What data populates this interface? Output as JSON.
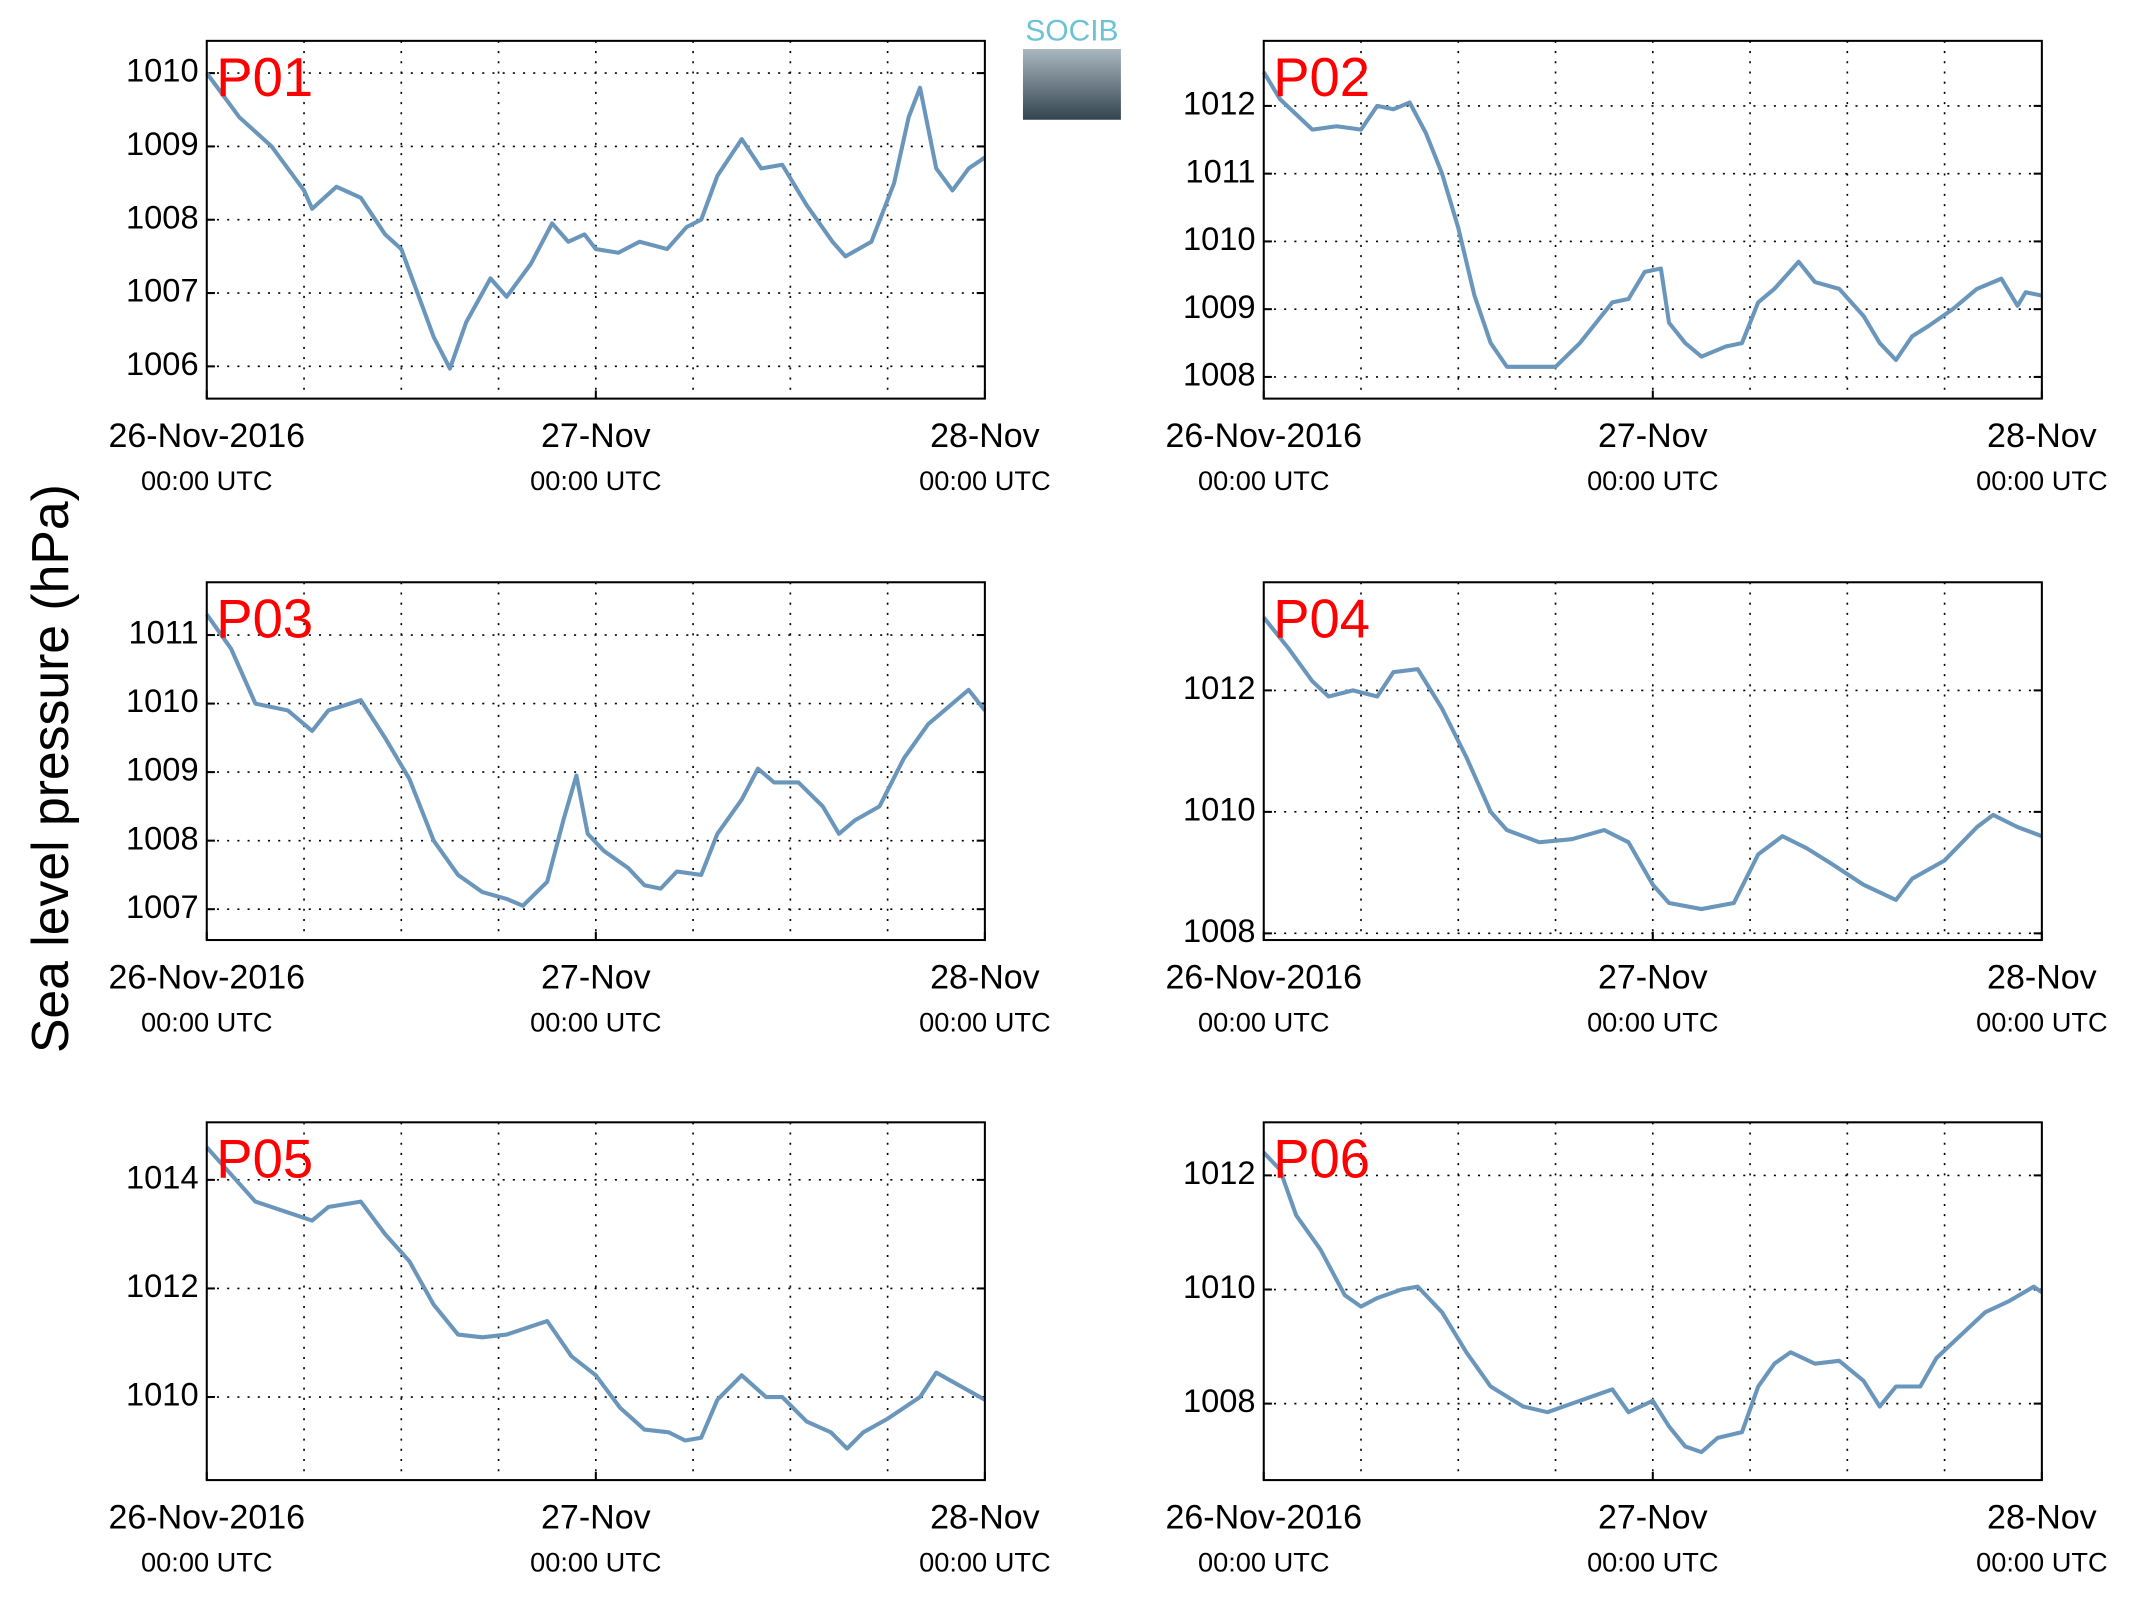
{
  "ylabel": "Sea level pressure (hPa)",
  "logo": "SOCIB",
  "chart_data": [
    {
      "type": "line",
      "title": "P01",
      "x": [
        0,
        2,
        4,
        6,
        6.5,
        8,
        9.5,
        11,
        12,
        13,
        14,
        15,
        16,
        17.5,
        18.5,
        20,
        21.3,
        22.3,
        23.3,
        24,
        25.4,
        26.7,
        28.4,
        29.6,
        30.5,
        31.5,
        33,
        34.2,
        35.5,
        37,
        38.6,
        39.4,
        41,
        42.4,
        43.3,
        44,
        45,
        46,
        47,
        48
      ],
      "series": [
        {
          "color": "#6a96bb",
          "values": [
            1010.0,
            1009.4,
            1009.0,
            1008.4,
            1008.15,
            1008.45,
            1008.3,
            1007.8,
            1007.6,
            1007.0,
            1006.4,
            1005.97,
            1006.6,
            1007.2,
            1006.95,
            1007.4,
            1007.95,
            1007.7,
            1007.8,
            1007.6,
            1007.55,
            1007.7,
            1007.6,
            1007.9,
            1008.0,
            1008.6,
            1009.1,
            1008.7,
            1008.75,
            1008.2,
            1007.7,
            1007.5,
            1007.7,
            1008.5,
            1009.4,
            1009.8,
            1008.7,
            1008.4,
            1008.7,
            1008.85
          ]
        }
      ],
      "xlim": [
        0,
        48
      ],
      "xticks": [
        {
          "value": 0,
          "label": "26-Nov-2016",
          "sublabel": "00:00 UTC"
        },
        {
          "value": 24,
          "label": "27-Nov",
          "sublabel": "00:00 UTC"
        },
        {
          "value": 48,
          "label": "28-Nov",
          "sublabel": "00:00 UTC"
        }
      ],
      "xgrid": [
        6,
        12,
        18,
        24,
        30,
        36,
        42
      ],
      "ylim": [
        1005.56,
        1010.44
      ],
      "yticks": [
        1006,
        1007,
        1008,
        1009,
        1010
      ],
      "grid": true
    },
    {
      "type": "line",
      "title": "P02",
      "x": [
        0,
        1,
        3,
        4.5,
        6,
        7,
        8,
        9,
        10,
        11,
        12,
        13,
        14,
        15,
        16.5,
        18,
        19.5,
        20.5,
        21.5,
        22.5,
        23.5,
        24.5,
        25,
        26,
        27,
        28.5,
        29.5,
        30.5,
        31.5,
        33,
        34,
        35.5,
        37,
        38,
        39,
        40,
        41,
        42.5,
        44,
        45.5,
        46.5,
        47,
        48
      ],
      "series": [
        {
          "color": "#6a96bb",
          "values": [
            1012.5,
            1012.1,
            1011.65,
            1011.7,
            1011.65,
            1012.0,
            1011.95,
            1012.05,
            1011.6,
            1011.0,
            1010.2,
            1009.2,
            1008.5,
            1008.15,
            1008.15,
            1008.15,
            1008.5,
            1008.8,
            1009.1,
            1009.15,
            1009.55,
            1009.6,
            1008.8,
            1008.5,
            1008.3,
            1008.45,
            1008.5,
            1009.1,
            1009.3,
            1009.7,
            1009.4,
            1009.3,
            1008.9,
            1008.5,
            1008.25,
            1008.6,
            1008.75,
            1009.0,
            1009.3,
            1009.45,
            1009.05,
            1009.25,
            1009.2
          ]
        }
      ],
      "xlim": [
        0,
        48
      ],
      "xticks": [
        {
          "value": 0,
          "label": "26-Nov-2016",
          "sublabel": "00:00 UTC"
        },
        {
          "value": 24,
          "label": "27-Nov",
          "sublabel": "00:00 UTC"
        },
        {
          "value": 48,
          "label": "28-Nov",
          "sublabel": "00:00 UTC"
        }
      ],
      "xgrid": [
        6,
        12,
        18,
        24,
        30,
        36,
        42
      ],
      "ylim": [
        1007.68,
        1012.96
      ],
      "yticks": [
        1008,
        1009,
        1010,
        1011,
        1012
      ],
      "grid": true
    },
    {
      "type": "line",
      "title": "P03",
      "x": [
        0,
        1.5,
        3,
        5,
        6.5,
        7.5,
        9.5,
        11,
        12.5,
        14,
        15.5,
        17,
        18.5,
        19.5,
        21,
        22,
        22.8,
        23.5,
        24.5,
        26,
        27,
        28,
        29,
        30.5,
        31.5,
        33,
        34,
        35,
        36.5,
        38,
        39,
        40,
        41.5,
        43,
        44.5,
        46,
        47,
        48
      ],
      "series": [
        {
          "color": "#6a96bb",
          "values": [
            1011.3,
            1010.8,
            1010.0,
            1009.9,
            1009.6,
            1009.9,
            1010.05,
            1009.5,
            1008.9,
            1008.0,
            1007.5,
            1007.25,
            1007.15,
            1007.05,
            1007.4,
            1008.3,
            1008.95,
            1008.1,
            1007.85,
            1007.6,
            1007.35,
            1007.3,
            1007.55,
            1007.5,
            1008.1,
            1008.6,
            1009.05,
            1008.85,
            1008.85,
            1008.5,
            1008.1,
            1008.3,
            1008.5,
            1009.2,
            1009.7,
            1010.0,
            1010.2,
            1009.9
          ]
        }
      ],
      "xlim": [
        0,
        48
      ],
      "xticks": [
        {
          "value": 0,
          "label": "26-Nov-2016",
          "sublabel": "00:00 UTC"
        },
        {
          "value": 24,
          "label": "27-Nov",
          "sublabel": "00:00 UTC"
        },
        {
          "value": 48,
          "label": "28-Nov",
          "sublabel": "00:00 UTC"
        }
      ],
      "xgrid": [
        6,
        12,
        18,
        24,
        30,
        36,
        42
      ],
      "ylim": [
        1006.55,
        1011.77
      ],
      "yticks": [
        1007,
        1008,
        1009,
        1010,
        1011
      ],
      "grid": true
    },
    {
      "type": "line",
      "title": "P04",
      "x": [
        0,
        1.5,
        3,
        4,
        5.5,
        7,
        8,
        9.5,
        11,
        12.5,
        14,
        15,
        17,
        19,
        21,
        22.5,
        24,
        25,
        27,
        29,
        30.5,
        32,
        33.5,
        35,
        37,
        39,
        40,
        42,
        44,
        45,
        46.5,
        48
      ],
      "series": [
        {
          "color": "#6a96bb",
          "values": [
            1013.2,
            1012.7,
            1012.15,
            1011.9,
            1012.0,
            1011.9,
            1012.3,
            1012.35,
            1011.7,
            1010.9,
            1010.0,
            1009.7,
            1009.5,
            1009.55,
            1009.7,
            1009.5,
            1008.8,
            1008.5,
            1008.4,
            1008.5,
            1009.3,
            1009.6,
            1009.4,
            1009.15,
            1008.8,
            1008.55,
            1008.9,
            1009.2,
            1009.75,
            1009.95,
            1009.75,
            1009.6
          ]
        }
      ],
      "xlim": [
        0,
        48
      ],
      "xticks": [
        {
          "value": 0,
          "label": "26-Nov-2016",
          "sublabel": "00:00 UTC"
        },
        {
          "value": 24,
          "label": "27-Nov",
          "sublabel": "00:00 UTC"
        },
        {
          "value": 48,
          "label": "28-Nov",
          "sublabel": "00:00 UTC"
        }
      ],
      "xgrid": [
        6,
        12,
        18,
        24,
        30,
        36,
        42
      ],
      "ylim": [
        1007.89,
        1013.78
      ],
      "yticks": [
        1008,
        1010,
        1012
      ],
      "grid": true
    },
    {
      "type": "line",
      "title": "P05",
      "x": [
        0,
        1.5,
        3,
        5,
        6.5,
        7.5,
        9.5,
        11,
        12.5,
        14,
        15.5,
        17,
        18.5,
        20,
        21,
        22.5,
        24,
        25.5,
        27,
        28.5,
        29.5,
        30.5,
        31.5,
        33,
        34.5,
        35.5,
        37,
        38.5,
        39.5,
        40.5,
        42,
        44,
        45,
        46.5,
        48
      ],
      "series": [
        {
          "color": "#6a96bb",
          "values": [
            1014.6,
            1014.1,
            1013.6,
            1013.4,
            1013.25,
            1013.5,
            1013.6,
            1013.0,
            1012.5,
            1011.7,
            1011.15,
            1011.1,
            1011.15,
            1011.3,
            1011.4,
            1010.75,
            1010.4,
            1009.8,
            1009.4,
            1009.35,
            1009.2,
            1009.25,
            1009.95,
            1010.4,
            1010.0,
            1010.0,
            1009.55,
            1009.35,
            1009.05,
            1009.35,
            1009.6,
            1010.0,
            1010.45,
            1010.2,
            1009.95
          ]
        }
      ],
      "xlim": [
        0,
        48
      ],
      "xticks": [
        {
          "value": 0,
          "label": "26-Nov-2016",
          "sublabel": "00:00 UTC"
        },
        {
          "value": 24,
          "label": "27-Nov",
          "sublabel": "00:00 UTC"
        },
        {
          "value": 48,
          "label": "28-Nov",
          "sublabel": "00:00 UTC"
        }
      ],
      "xgrid": [
        6,
        12,
        18,
        24,
        30,
        36,
        42
      ],
      "ylim": [
        1008.47,
        1015.06
      ],
      "yticks": [
        1010,
        1012,
        1014
      ],
      "grid": true
    },
    {
      "type": "line",
      "title": "P06",
      "x": [
        0,
        1,
        2,
        3.5,
        5,
        6,
        7,
        8.5,
        9.5,
        11,
        12.5,
        14,
        16,
        17.5,
        19,
        20.5,
        21.5,
        22.5,
        24,
        25,
        26,
        27,
        28,
        29.5,
        30.5,
        31.5,
        32.5,
        34,
        35.5,
        37,
        38,
        39,
        40.5,
        41.5,
        43,
        44.5,
        46,
        47.5,
        48
      ],
      "series": [
        {
          "color": "#6a96bb",
          "values": [
            1012.4,
            1012.1,
            1011.3,
            1010.7,
            1009.9,
            1009.7,
            1009.85,
            1010.0,
            1010.05,
            1009.6,
            1008.9,
            1008.3,
            1007.95,
            1007.85,
            1008.0,
            1008.15,
            1008.25,
            1007.85,
            1008.05,
            1007.6,
            1007.25,
            1007.15,
            1007.4,
            1007.5,
            1008.3,
            1008.7,
            1008.9,
            1008.7,
            1008.75,
            1008.4,
            1007.95,
            1008.3,
            1008.3,
            1008.8,
            1009.2,
            1009.6,
            1009.8,
            1010.05,
            1009.95
          ]
        }
      ],
      "xlim": [
        0,
        48
      ],
      "xticks": [
        {
          "value": 0,
          "label": "26-Nov-2016",
          "sublabel": "00:00 UTC"
        },
        {
          "value": 24,
          "label": "27-Nov",
          "sublabel": "00:00 UTC"
        },
        {
          "value": 48,
          "label": "28-Nov",
          "sublabel": "00:00 UTC"
        }
      ],
      "xgrid": [
        6,
        12,
        18,
        24,
        30,
        36,
        42
      ],
      "ylim": [
        1006.66,
        1012.93
      ],
      "yticks": [
        1008,
        1010,
        1012
      ],
      "grid": true
    }
  ]
}
